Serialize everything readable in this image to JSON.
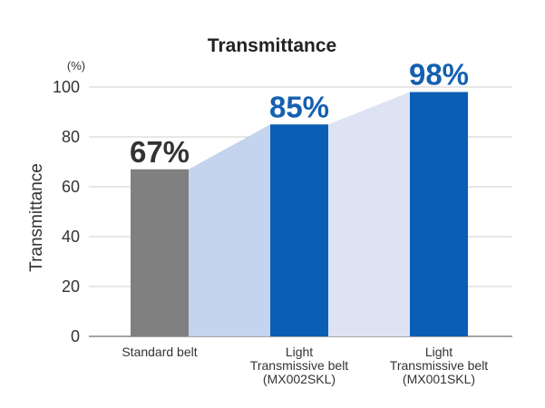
{
  "chart_data": {
    "type": "bar",
    "title": "Transmittance",
    "unit_label": "(%)",
    "ylabel": "Transmittance",
    "xlabel": "",
    "ylim": [
      0,
      100
    ],
    "yticks": [
      0,
      20,
      40,
      60,
      80,
      100
    ],
    "grid": true,
    "categories": [
      [
        "Standard belt"
      ],
      [
        "Light",
        "Transmissive belt",
        "(MX002SKL)"
      ],
      [
        "Light",
        "Transmissive belt",
        "(MX001SKL)"
      ]
    ],
    "values": [
      67,
      85,
      98
    ],
    "data_labels": [
      "67%",
      "85%",
      "98%"
    ],
    "colors": {
      "bars": [
        "#808080",
        "#0a5fb4",
        "#0a5fb4"
      ],
      "labels": [
        "#333333",
        "#1560b0",
        "#1560b0"
      ],
      "band_1": "#c4d3ee",
      "band_2": "#dde3f3"
    }
  }
}
